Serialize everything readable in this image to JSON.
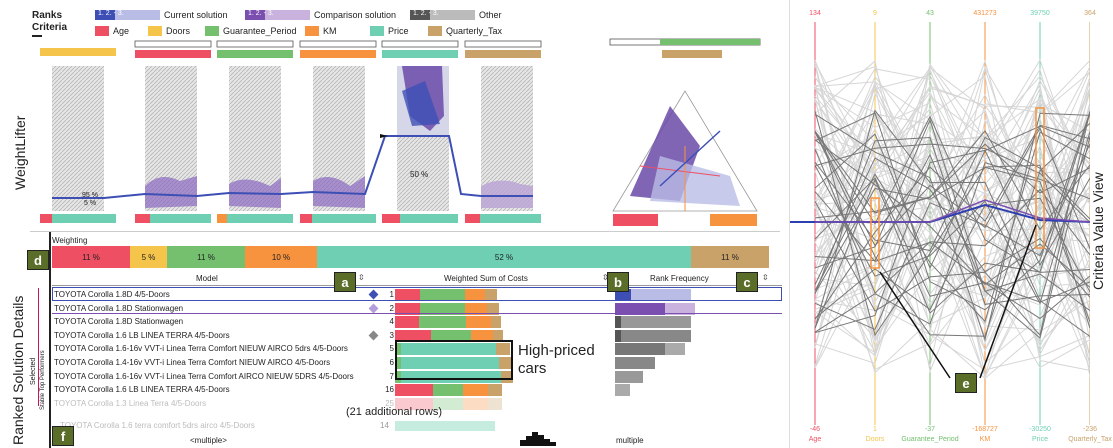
{
  "header": {
    "ranks_label": "Ranks",
    "criteria_label": "Criteria",
    "legend": [
      {
        "name": "Current solution",
        "ranks": "1.  2. - 3.",
        "color_dark": "#3d4fb5",
        "color_light": "#b9bde6"
      },
      {
        "name": "Comparison solution",
        "ranks": "1.  2. - 3.",
        "color_dark": "#7b4fb0",
        "color_light": "#c9b2dd"
      },
      {
        "name": "Other",
        "ranks": "1.  2. - 3.",
        "color_dark": "#555555",
        "color_light": "#bbbbbb"
      }
    ],
    "criteria": [
      {
        "name": "Age",
        "color": "#ef4f63"
      },
      {
        "name": "Doors",
        "color": "#f5c44b"
      },
      {
        "name": "Guarantee_Period",
        "color": "#74c06f"
      },
      {
        "name": "KM",
        "color": "#f7923e"
      },
      {
        "name": "Price",
        "color": "#6fcfb3"
      },
      {
        "name": "Quarterly_Tax",
        "color": "#c9a26a"
      }
    ]
  },
  "weightlifter": {
    "title": "WeightLifter",
    "panel1_labels": [
      "95 %",
      "5 %"
    ],
    "panel5_label": "50 %"
  },
  "details": {
    "title": "Ranked Solution Details",
    "weighting_label": "Weighting",
    "weights": [
      {
        "label": "11 %",
        "color": "#ef4f63"
      },
      {
        "label": "5 %",
        "color": "#f5c44b"
      },
      {
        "label": "11 %",
        "color": "#74c06f"
      },
      {
        "label": "10 %",
        "color": "#f7923e"
      },
      {
        "label": "52 %",
        "color": "#6fcfb3"
      },
      {
        "label": "11 %",
        "color": "#c9a26a"
      }
    ],
    "columns": {
      "model": "Model",
      "sum": "Weighted Sum of Costs",
      "rank": "Rank Frequency"
    },
    "side_labels": {
      "selected": "Selected",
      "stable": "Stable Top Performers"
    },
    "rows": [
      {
        "model": "TOYOTA Corolla 1.8D 4/5-Doors",
        "rank": "1",
        "marker": "blue"
      },
      {
        "model": "TOYOTA Corolla 1.8D Stationwagen",
        "rank": "2",
        "marker": "purple"
      },
      {
        "model": "TOYOTA Corolla 1.8D Stationwagen",
        "rank": "4",
        "marker": ""
      },
      {
        "model": "TOYOTA Corolla 1.6 LB LINEA TERRA 4/5-Doors",
        "rank": "3",
        "marker": "gray"
      },
      {
        "model": "TOYOTA Corolla 1.6-16v VVT-i Linea Terra Comfort NIEUW AIRCO 5drs 4/5-Doors",
        "rank": "5",
        "marker": ""
      },
      {
        "model": "TOYOTA Corolla 1.4-16v VVT-i Linea Terra Comfort NIEUW AIRCO 4/5-Doors",
        "rank": "6",
        "marker": ""
      },
      {
        "model": "TOYOTA Corolla 1.6-16v VVT-i Linea Terra Comfort AIRCO NIEUW 5DRS 4/5-Doors",
        "rank": "7",
        "marker": ""
      },
      {
        "model": "TOYOTA Corolla 1.6 LB LINEA TERRA 4/5-Doors",
        "rank": "16",
        "marker": ""
      },
      {
        "model": "TOYOTA Corolla 1.3 Linea Terra 4/5-Doors",
        "rank": "25",
        "marker": ""
      }
    ],
    "additional_rows": "(21 additional rows)",
    "faded_row": {
      "model": "TOYOTA Corolla 1.6 terra comfort 5drs airco 4/5-Doors",
      "rank": "14"
    },
    "footer": {
      "multiple_left": "<multiple>",
      "multiple_right": "multiple"
    },
    "annotation": "High-priced cars",
    "callouts": [
      "a",
      "b",
      "c",
      "d",
      "e",
      "f"
    ]
  },
  "parallel": {
    "title": "Criteria Value View",
    "axes": [
      {
        "name": "Age",
        "top": "134",
        "bottom": "-46",
        "color": "#ef4f63"
      },
      {
        "name": "Doors",
        "top": "9",
        "bottom": "1",
        "color": "#f5c44b"
      },
      {
        "name": "Guarantee_Period",
        "top": "43",
        "bottom": "-37",
        "color": "#74c06f"
      },
      {
        "name": "KM",
        "top": "431273",
        "bottom": "-168727",
        "color": "#f7923e"
      },
      {
        "name": "Price",
        "top": "39750",
        "bottom": "-30250",
        "color": "#6fcfb3"
      },
      {
        "name": "Quarterly_Tax",
        "top": "364",
        "bottom": "-236",
        "color": "#c9a26a"
      }
    ]
  }
}
